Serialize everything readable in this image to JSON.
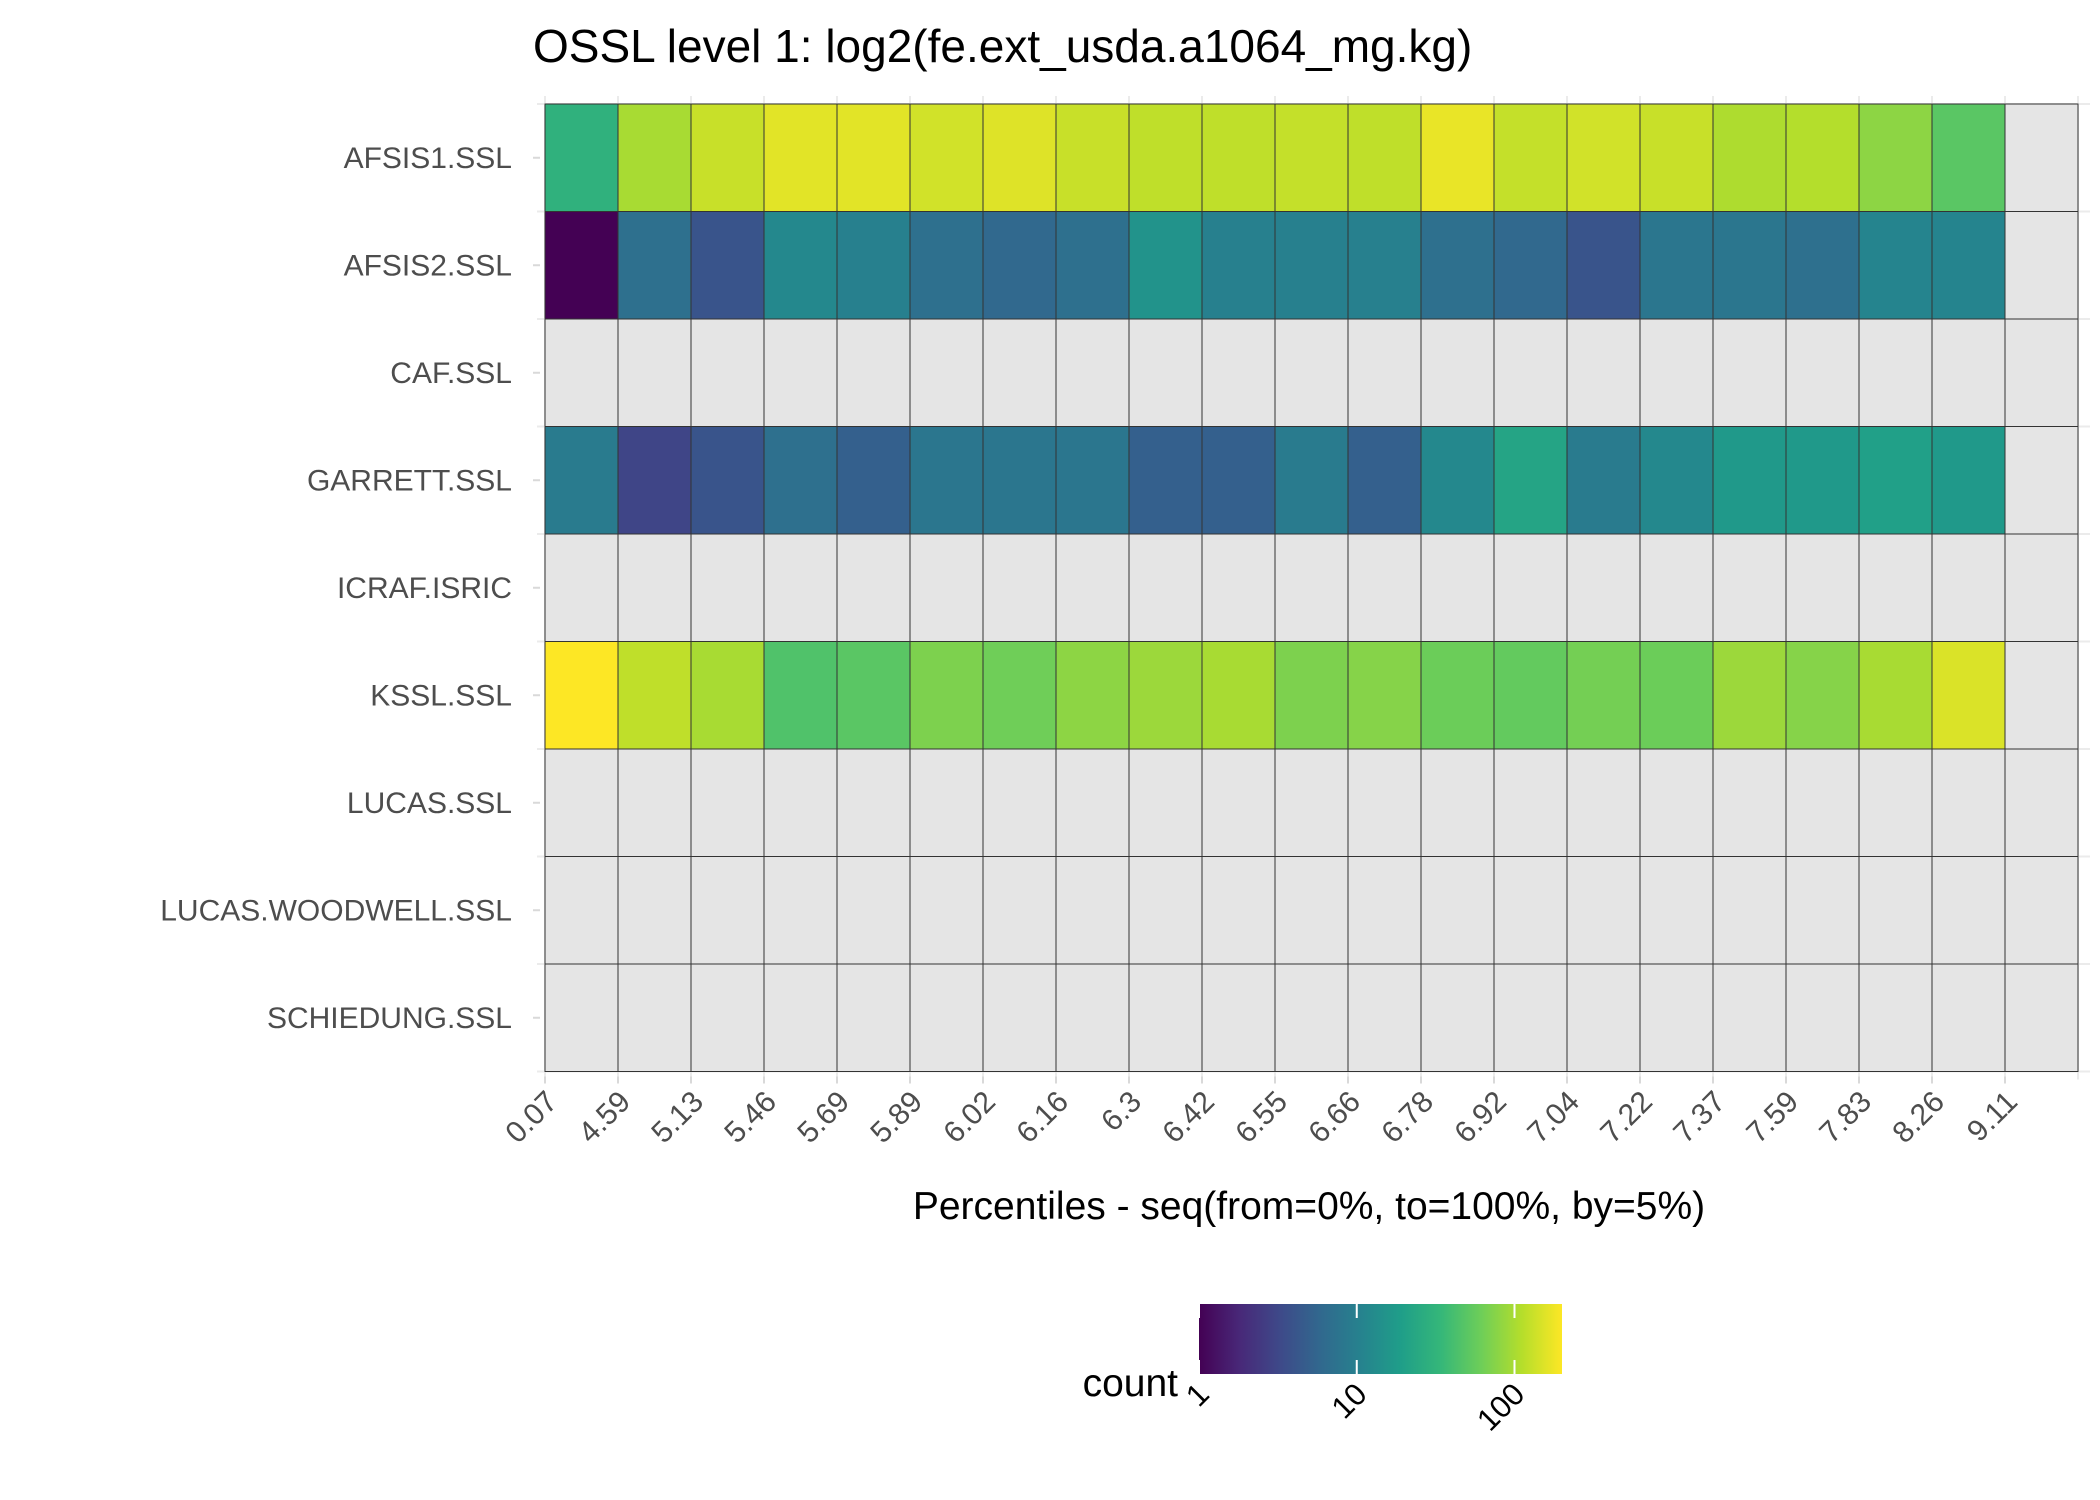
{
  "chart_data": {
    "type": "heatmap",
    "title": "OSSL level 1: log2(fe.ext_usda.a1064_mg.kg)",
    "xlabel": "Percentiles - seq(from=0%, to=100%, by=5%)",
    "ylabel": "",
    "x_ticks": [
      "0.07",
      "4.59",
      "5.13",
      "5.46",
      "5.69",
      "5.89",
      "6.02",
      "6.16",
      "6.3",
      "6.42",
      "6.55",
      "6.66",
      "6.78",
      "6.92",
      "7.04",
      "7.22",
      "7.37",
      "7.59",
      "7.83",
      "8.26",
      "9.11"
    ],
    "rows": [
      "AFSIS1.SSL",
      "AFSIS2.SSL",
      "CAF.SSL",
      "GARRETT.SSL",
      "ICRAF.ISRIC",
      "KSSL.SSL",
      "LUCAS.SSL",
      "LUCAS.WOODWELL.SSL",
      "SCHIEDUNG.SSL"
    ],
    "values": [
      [
        30,
        100,
        130,
        160,
        160,
        140,
        155,
        130,
        120,
        120,
        125,
        120,
        170,
        125,
        140,
        130,
        105,
        110,
        80,
        50,
        null
      ],
      [
        1,
        7,
        4,
        12,
        10,
        7,
        6,
        7,
        15,
        10,
        10,
        10,
        7,
        6,
        4,
        8,
        8,
        7,
        11,
        11,
        null
      ],
      [
        null,
        null,
        null,
        null,
        null,
        null,
        null,
        null,
        null,
        null,
        null,
        null,
        null,
        null,
        null,
        null,
        null,
        null,
        null,
        null,
        null
      ],
      [
        9,
        3,
        4,
        7,
        5,
        8,
        8,
        8,
        5,
        5,
        9,
        5,
        12,
        22,
        9,
        12,
        17,
        17,
        20,
        17,
        null
      ],
      [
        null,
        null,
        null,
        null,
        null,
        null,
        null,
        null,
        null,
        null,
        null,
        null,
        null,
        null,
        null,
        null,
        null,
        null,
        null,
        null,
        null
      ],
      [
        200,
        120,
        100,
        45,
        50,
        70,
        62,
        80,
        90,
        100,
        70,
        75,
        60,
        55,
        65,
        60,
        90,
        75,
        100,
        150,
        null
      ],
      [
        null,
        null,
        null,
        null,
        null,
        null,
        null,
        null,
        null,
        null,
        null,
        null,
        null,
        null,
        null,
        null,
        null,
        null,
        null,
        null,
        null
      ],
      [
        null,
        null,
        null,
        null,
        null,
        null,
        null,
        null,
        null,
        null,
        null,
        null,
        null,
        null,
        null,
        null,
        null,
        null,
        null,
        null,
        null
      ],
      [
        null,
        null,
        null,
        null,
        null,
        null,
        null,
        null,
        null,
        null,
        null,
        null,
        null,
        null,
        null,
        null,
        null,
        null,
        null,
        null,
        null
      ]
    ],
    "color_scale": {
      "name": "viridis",
      "scale": "log10",
      "min": 1,
      "max": 200,
      "na_color": "#e5e5e5",
      "stops": [
        "#440154",
        "#482878",
        "#3e4989",
        "#31688e",
        "#26828e",
        "#1f9e89",
        "#35b779",
        "#6ece58",
        "#b5de2b",
        "#fde725"
      ]
    },
    "legend": {
      "title": "count",
      "ticks": [
        "1",
        "10",
        "100"
      ],
      "tick_values": [
        1,
        10,
        100
      ],
      "position": "bottom"
    }
  }
}
